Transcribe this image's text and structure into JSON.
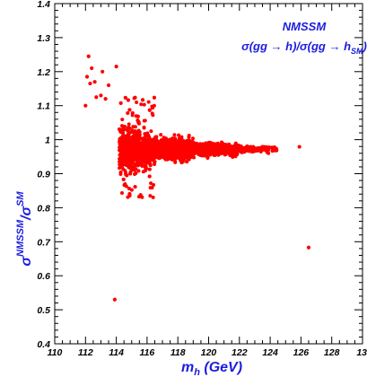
{
  "chart_data": {
    "type": "scatter",
    "title": "",
    "xlabel": "m_h (GeV)",
    "xlabel_parts": {
      "main": "m",
      "sub": "h",
      "rest": " (GeV)"
    },
    "ylabel": "σ^NMSSM/σ^SM",
    "ylabel_parts": {
      "sigma1": "σ",
      "sup1": "NMSSM",
      "slash": "/",
      "sigma2": "σ",
      "sup2": "SM"
    },
    "xlim": [
      110,
      130
    ],
    "ylim": [
      0.4,
      1.4
    ],
    "x_ticks": [
      110,
      112,
      114,
      116,
      118,
      120,
      122,
      124,
      126,
      128
    ],
    "x_tick_labels": [
      "110",
      "112",
      "114",
      "116",
      "118",
      "120",
      "122",
      "124",
      "126",
      "128"
    ],
    "x_tick_edge_label": "13",
    "y_ticks": [
      0.4,
      0.5,
      0.6,
      0.7,
      0.8,
      0.9,
      1.0,
      1.1,
      1.2,
      1.3,
      1.4
    ],
    "y_tick_labels": [
      "0.4",
      "0.5",
      "0.6",
      "0.7",
      "0.8",
      "0.9",
      "1",
      "1.1",
      "1.2",
      "1.3",
      "1.4"
    ],
    "grid": false,
    "annotations": {
      "model": "NMSSM",
      "process": {
        "p1": "σ(gg → h)/σ(gg → h",
        "sub": "SM",
        "p2": ")"
      }
    },
    "colors": {
      "points": "#ff0000",
      "annotation": "#1c1ce0",
      "axes": "#000000"
    },
    "series": [
      {
        "values": [
          [
            112.2,
            1.245
          ],
          [
            112.4,
            1.21
          ],
          [
            112.1,
            1.185
          ],
          [
            112.6,
            1.17
          ],
          [
            112.3,
            1.165
          ],
          [
            113.1,
            1.2
          ],
          [
            113.5,
            1.16
          ],
          [
            113.0,
            1.13
          ],
          [
            112.7,
            1.125
          ],
          [
            113.3,
            1.12
          ],
          [
            114.0,
            1.215
          ],
          [
            112.0,
            1.1
          ],
          [
            113.9,
            0.53
          ],
          [
            126.5,
            0.683
          ],
          [
            125.9,
            0.979
          ],
          [
            123.7,
            0.97
          ],
          [
            124.3,
            0.972
          ],
          [
            123.4,
            0.965
          ],
          [
            122.9,
            0.975
          ]
        ]
      }
    ]
  }
}
